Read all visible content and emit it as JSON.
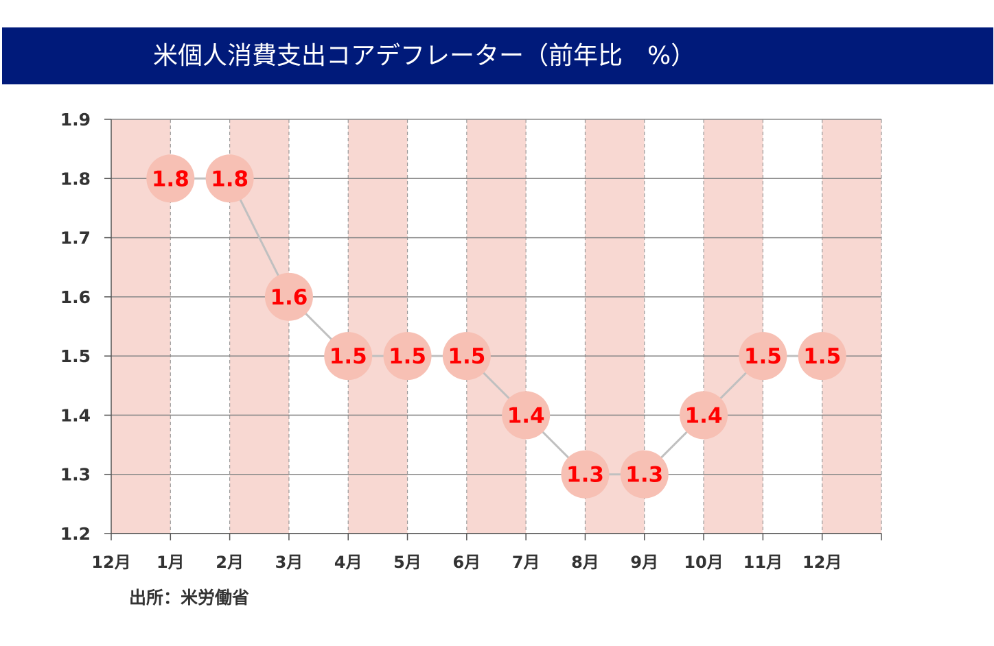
{
  "title": "米個人消費支出コアデフレーター（前年比　%）",
  "source": "出所：米労働省",
  "colors": {
    "title_bg": "#001a7a",
    "band_fill": "#f8d8d2",
    "marker_fill": "#f7c0b4",
    "line": "#c0c0c0",
    "label": "#ff0000",
    "grid": "#888888"
  },
  "chart_data": {
    "type": "line",
    "categories": [
      "12月",
      "1月",
      "2月",
      "3月",
      "4月",
      "5月",
      "6月",
      "7月",
      "8月",
      "9月",
      "10月",
      "11月",
      "12月"
    ],
    "y_tick_labels": [
      "1.2",
      "1.3",
      "1.4",
      "1.5",
      "1.6",
      "1.7",
      "1.8",
      "1.9"
    ],
    "ylim": [
      1.2,
      1.9
    ],
    "grid": true,
    "series": [
      {
        "points": [
          {
            "category": "1月",
            "value": 1.8,
            "label": "1.8"
          },
          {
            "category": "2月",
            "value": 1.8,
            "label": "1.8"
          },
          {
            "category": "3月",
            "value": 1.6,
            "label": "1.6"
          },
          {
            "category": "4月",
            "value": 1.5,
            "label": "1.5"
          },
          {
            "category": "5月",
            "value": 1.5,
            "label": "1.5"
          },
          {
            "category": "6月",
            "value": 1.5,
            "label": "1.5"
          },
          {
            "category": "7月",
            "value": 1.4,
            "label": "1.4"
          },
          {
            "category": "8月",
            "value": 1.3,
            "label": "1.3"
          },
          {
            "category": "9月",
            "value": 1.3,
            "label": "1.3"
          },
          {
            "category": "10月",
            "value": 1.4,
            "label": "1.4"
          },
          {
            "category": "11月",
            "value": 1.5,
            "label": "1.5"
          },
          {
            "category": "12月",
            "value": 1.5,
            "label": "1.5"
          }
        ]
      }
    ]
  }
}
